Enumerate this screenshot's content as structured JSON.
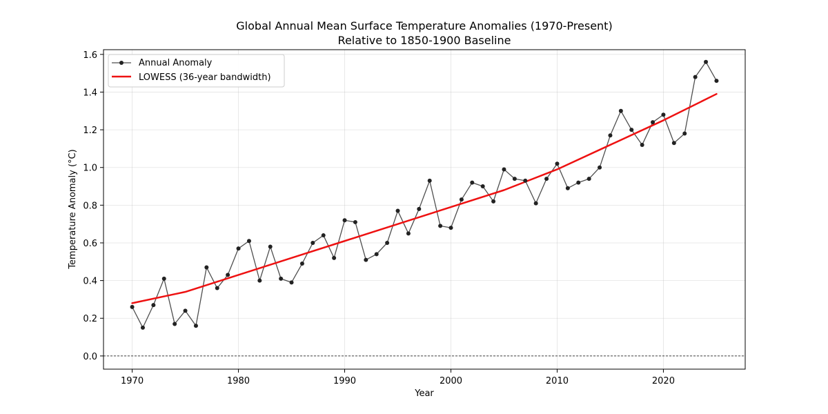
{
  "chart_data": {
    "type": "line",
    "title": "Global Annual Mean Surface Temperature Anomalies (1970-Present)",
    "subtitle": "Relative to 1850-1900 Baseline",
    "xlabel": "Year",
    "ylabel": "Temperature Anomaly (°C)",
    "xlim": [
      1967.3,
      2027.7
    ],
    "ylim": [
      -0.07,
      1.625
    ],
    "xticks": [
      1970,
      1980,
      1990,
      2000,
      2010,
      2020
    ],
    "yticks": [
      0.0,
      0.2,
      0.4,
      0.6,
      0.8,
      1.0,
      1.2,
      1.4,
      1.6
    ],
    "ytick_labels": [
      "0.0",
      "0.2",
      "0.4",
      "0.6",
      "0.8",
      "1.0",
      "1.2",
      "1.4",
      "1.6"
    ],
    "grid": true,
    "reference_line": {
      "y": 0.0,
      "style": "dashed",
      "color": "#000000"
    },
    "legend": {
      "position": "top-left",
      "entries": [
        "Annual Anomaly",
        "LOWESS (36-year bandwidth)"
      ]
    },
    "series": [
      {
        "name": "Annual Anomaly",
        "type": "line-markers",
        "color": "#222222",
        "x": [
          1970,
          1971,
          1972,
          1973,
          1974,
          1975,
          1976,
          1977,
          1978,
          1979,
          1980,
          1981,
          1982,
          1983,
          1984,
          1985,
          1986,
          1987,
          1988,
          1989,
          1990,
          1991,
          1992,
          1993,
          1994,
          1995,
          1996,
          1997,
          1998,
          1999,
          2000,
          2001,
          2002,
          2003,
          2004,
          2005,
          2006,
          2007,
          2008,
          2009,
          2010,
          2011,
          2012,
          2013,
          2014,
          2015,
          2016,
          2017,
          2018,
          2019,
          2020,
          2021,
          2022,
          2023,
          2024,
          2025
        ],
        "values": [
          0.26,
          0.15,
          0.27,
          0.41,
          0.17,
          0.24,
          0.16,
          0.47,
          0.36,
          0.43,
          0.57,
          0.61,
          0.4,
          0.58,
          0.41,
          0.39,
          0.49,
          0.6,
          0.64,
          0.52,
          0.72,
          0.71,
          0.51,
          0.54,
          0.6,
          0.77,
          0.65,
          0.78,
          0.93,
          0.69,
          0.68,
          0.83,
          0.92,
          0.9,
          0.82,
          0.99,
          0.94,
          0.93,
          0.81,
          0.94,
          1.02,
          0.89,
          0.92,
          0.94,
          1.0,
          1.17,
          1.3,
          1.2,
          1.12,
          1.24,
          1.28,
          1.13,
          1.18,
          1.48,
          1.56,
          1.46
        ]
      },
      {
        "name": "LOWESS (36-year bandwidth)",
        "type": "line",
        "color": "#ee1111",
        "x": [
          1970,
          1975,
          1980,
          1985,
          1990,
          1995,
          2000,
          2005,
          2010,
          2015,
          2020,
          2025
        ],
        "values": [
          0.28,
          0.34,
          0.43,
          0.52,
          0.61,
          0.7,
          0.79,
          0.88,
          0.99,
          1.12,
          1.25,
          1.39
        ]
      }
    ]
  }
}
